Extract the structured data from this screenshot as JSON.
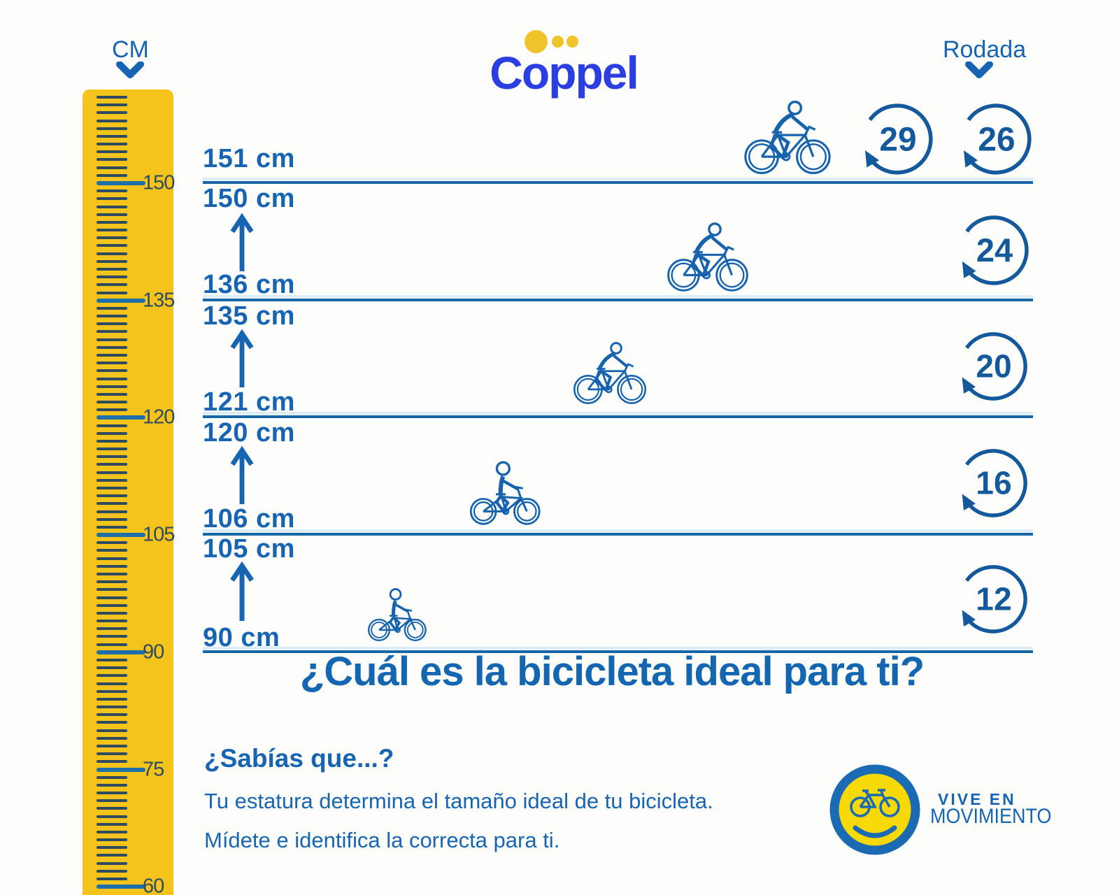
{
  "header": {
    "ruler_unit": "CM",
    "brand": "Coppel",
    "rodada_label": "Rodada"
  },
  "ruler": {
    "unit": "cm",
    "major_step": 15,
    "major_labels": [
      "150",
      "135",
      "120",
      "105",
      "90",
      "75",
      "60"
    ]
  },
  "rows": [
    {
      "range_top": "151 cm",
      "range_bottom": "",
      "wheels": [
        "29",
        "26"
      ]
    },
    {
      "range_top": "150 cm",
      "range_bottom": "136 cm",
      "wheels": [
        "24"
      ]
    },
    {
      "range_top": "135 cm",
      "range_bottom": "121 cm",
      "wheels": [
        "20"
      ]
    },
    {
      "range_top": "120 cm",
      "range_bottom": "106 cm",
      "wheels": [
        "16"
      ]
    },
    {
      "range_top": "105 cm",
      "range_bottom": "90 cm",
      "wheels": [
        "12"
      ]
    }
  ],
  "title": "¿Cuál es la bicicleta ideal para ti?",
  "fact": {
    "heading": "¿Sabías que...?",
    "line1": "Tu estatura determina el tamaño ideal de tu bicicleta.",
    "line2": "Mídete e identifica la correcta para ti."
  },
  "badge": {
    "line1": "VIVE EN",
    "line2": "MOVIMIENTO"
  },
  "colors": {
    "brand_blue": "#2A3EE2",
    "text_blue": "#1765B2",
    "deep_blue": "#14599C",
    "ruler_yellow": "#F5C41C",
    "tick_navy": "#2E4B60",
    "badge_yellow": "#F7D908",
    "badge_ring": "#1A6BB4",
    "line_blue": "#1767A8",
    "dot_gold": "#EFC32A"
  }
}
